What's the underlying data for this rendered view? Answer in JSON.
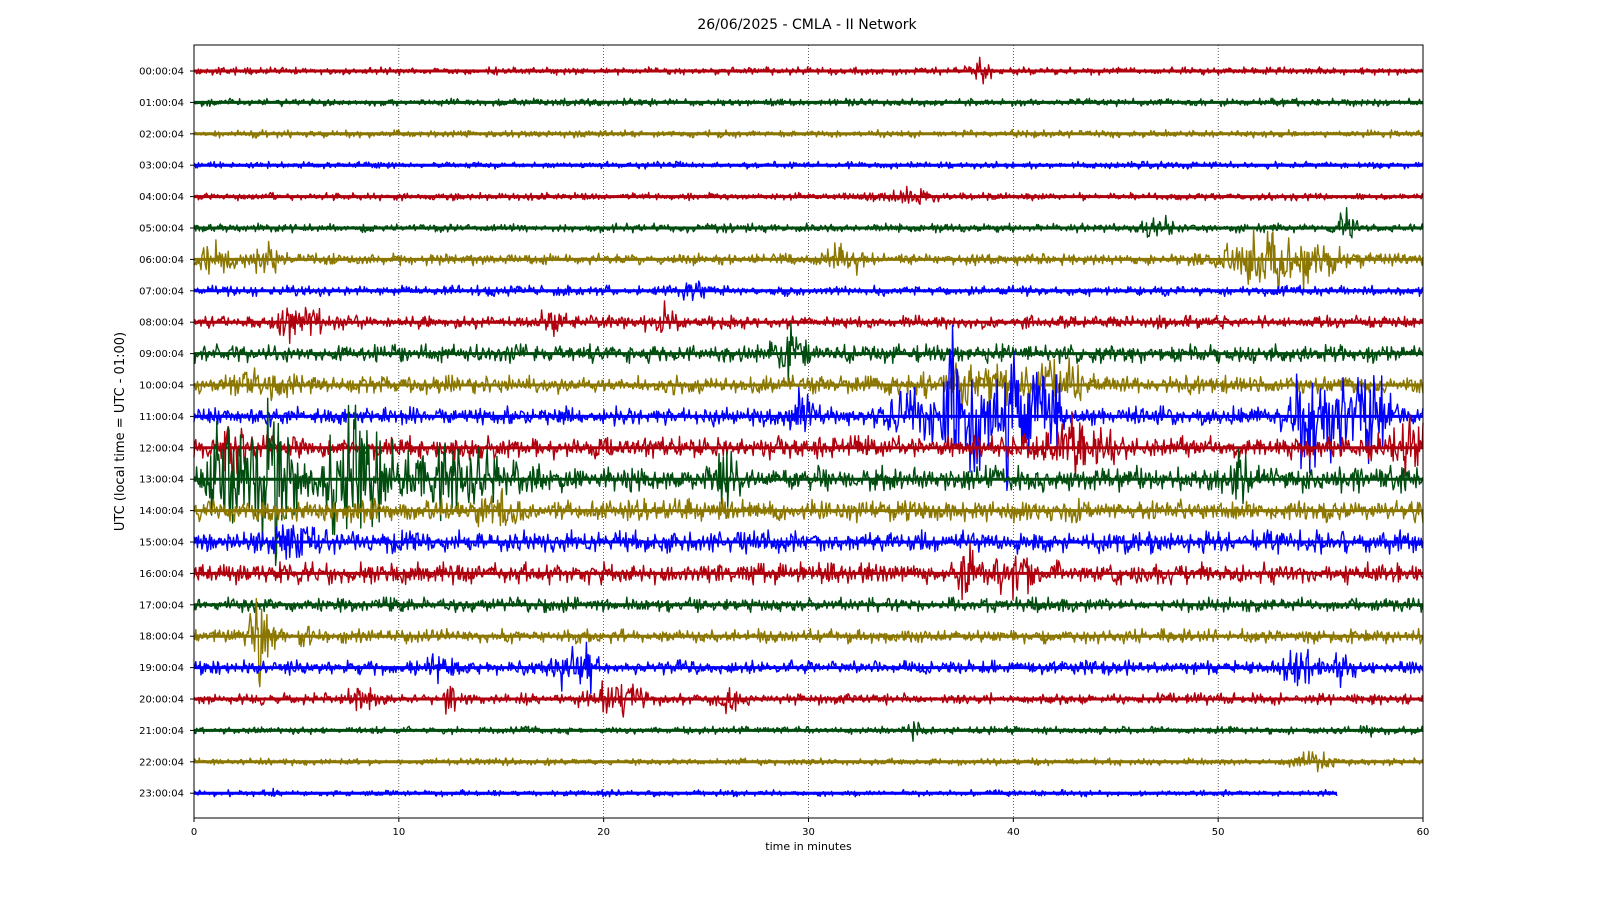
{
  "chart_data": {
    "type": "line",
    "title": "26/06/2025 - CMLA - II Network",
    "xlabel": "time in minutes",
    "ylabel": "UTC (local time = UTC - 01:00)",
    "xlim": [
      0,
      60
    ],
    "x_ticks": [
      0,
      10,
      20,
      30,
      40,
      50,
      60
    ],
    "grid": "vertical dotted at x ticks",
    "colors": [
      "#b0000e",
      "#004d0f",
      "#8b7700",
      "#0000ff"
    ],
    "rows": [
      {
        "label": "00:00:04",
        "color": "#b0000e",
        "amp": 0.12,
        "end": 60,
        "bursts": [
          [
            38.5,
            0.3,
            0.6
          ]
        ]
      },
      {
        "label": "01:00:04",
        "color": "#004d0f",
        "amp": 0.12,
        "end": 60,
        "bursts": []
      },
      {
        "label": "02:00:04",
        "color": "#8b7700",
        "amp": 0.12,
        "end": 60,
        "bursts": []
      },
      {
        "label": "03:00:04",
        "color": "#0000ff",
        "amp": 0.11,
        "end": 60,
        "bursts": []
      },
      {
        "label": "04:00:04",
        "color": "#b0000e",
        "amp": 0.12,
        "end": 60,
        "bursts": [
          [
            34.5,
            0.2,
            1.5
          ]
        ]
      },
      {
        "label": "05:00:04",
        "color": "#004d0f",
        "amp": 0.14,
        "end": 60,
        "bursts": [
          [
            47,
            0.3,
            0.8
          ],
          [
            56.3,
            0.45,
            0.5
          ]
        ]
      },
      {
        "label": "06:00:04",
        "color": "#8b7700",
        "amp": 0.18,
        "end": 60,
        "bursts": [
          [
            0.8,
            0.5,
            1.2
          ],
          [
            3.5,
            0.35,
            0.8
          ],
          [
            31.8,
            0.45,
            0.8
          ],
          [
            53,
            0.9,
            2.5
          ]
        ]
      },
      {
        "label": "07:00:04",
        "color": "#0000ff",
        "amp": 0.16,
        "end": 60,
        "bursts": [
          [
            24.3,
            0.2,
            0.8
          ]
        ]
      },
      {
        "label": "08:00:04",
        "color": "#b0000e",
        "amp": 0.2,
        "end": 60,
        "bursts": [
          [
            5.2,
            0.5,
            1.2
          ],
          [
            17.5,
            0.45,
            0.6
          ],
          [
            22.8,
            0.45,
            0.6
          ]
        ]
      },
      {
        "label": "09:00:04",
        "color": "#004d0f",
        "amp": 0.28,
        "end": 60,
        "bursts": [
          [
            29.2,
            0.6,
            0.8
          ]
        ]
      },
      {
        "label": "10:00:04",
        "color": "#8b7700",
        "amp": 0.28,
        "end": 60,
        "bursts": [
          [
            3.5,
            0.35,
            1
          ],
          [
            39,
            0.6,
            2.5
          ],
          [
            42.5,
            0.55,
            1
          ]
        ]
      },
      {
        "label": "11:00:04",
        "color": "#0000ff",
        "amp": 0.3,
        "end": 60,
        "bursts": [
          [
            36.9,
            3.8,
            0.35
          ],
          [
            38.2,
            2.2,
            0.5
          ],
          [
            39.8,
            1.9,
            0.6
          ],
          [
            41.5,
            1.6,
            0.8
          ],
          [
            35.2,
            0.8,
            1.2
          ],
          [
            54.6,
            1.5,
            1.2
          ],
          [
            57.2,
            1.4,
            1.2
          ],
          [
            29.6,
            0.6,
            0.6
          ]
        ]
      },
      {
        "label": "12:00:04",
        "color": "#b0000e",
        "amp": 0.35,
        "end": 60,
        "bursts": [
          [
            2,
            0.9,
            0.8
          ],
          [
            43,
            0.7,
            1.5
          ],
          [
            59.3,
            0.7,
            1
          ]
        ]
      },
      {
        "label": "13:00:04",
        "color": "#004d0f",
        "amp": 0.4,
        "end": 60,
        "bursts": [
          [
            1.5,
            2.4,
            0.7
          ],
          [
            3.8,
            2.4,
            1.0
          ],
          [
            8.2,
            2.3,
            1.2
          ],
          [
            6.5,
            0.9,
            0.5
          ],
          [
            12.5,
            0.9,
            2.5
          ],
          [
            26,
            0.6,
            0.7
          ],
          [
            51,
            0.6,
            0.4
          ]
        ]
      },
      {
        "label": "14:00:04",
        "color": "#8b7700",
        "amp": 0.35,
        "end": 60,
        "bursts": [
          [
            14.8,
            0.5,
            1
          ]
        ]
      },
      {
        "label": "15:00:04",
        "color": "#0000ff",
        "amp": 0.35,
        "end": 60,
        "bursts": [
          [
            5,
            0.5,
            1.2
          ]
        ]
      },
      {
        "label": "16:00:04",
        "color": "#b0000e",
        "amp": 0.33,
        "end": 60,
        "bursts": [
          [
            37.7,
            0.7,
            0.4
          ],
          [
            39.8,
            0.6,
            1.5
          ]
        ]
      },
      {
        "label": "17:00:04",
        "color": "#004d0f",
        "amp": 0.22,
        "end": 60,
        "bursts": []
      },
      {
        "label": "18:00:04",
        "color": "#8b7700",
        "amp": 0.22,
        "end": 60,
        "bursts": [
          [
            3.2,
            1.5,
            0.5
          ],
          [
            5.5,
            0.4,
            0.4
          ]
        ]
      },
      {
        "label": "19:00:04",
        "color": "#0000ff",
        "amp": 0.22,
        "end": 60,
        "bursts": [
          [
            18.3,
            0.55,
            0.8
          ],
          [
            19.4,
            0.65,
            0.3
          ],
          [
            12,
            0.3,
            0.5
          ],
          [
            54,
            0.45,
            0.8
          ],
          [
            56,
            0.35,
            0.6
          ]
        ]
      },
      {
        "label": "20:00:04",
        "color": "#b0000e",
        "amp": 0.18,
        "end": 60,
        "bursts": [
          [
            12.5,
            0.7,
            0.3
          ],
          [
            20.5,
            0.55,
            1.2
          ],
          [
            8.2,
            0.3,
            0.8
          ],
          [
            26.2,
            0.3,
            0.5
          ]
        ]
      },
      {
        "label": "21:00:04",
        "color": "#004d0f",
        "amp": 0.12,
        "end": 60,
        "bursts": [
          [
            35.3,
            0.3,
            0.3
          ],
          [
            57.3,
            0.35,
            0.2
          ]
        ]
      },
      {
        "label": "22:00:04",
        "color": "#8b7700",
        "amp": 0.11,
        "end": 60,
        "bursts": [
          [
            54.5,
            0.3,
            1.0
          ]
        ]
      },
      {
        "label": "23:00:04",
        "color": "#0000ff",
        "amp": 0.1,
        "end": 55.8,
        "bursts": [
          [
            3.8,
            0.15,
            0.4
          ]
        ]
      }
    ]
  }
}
